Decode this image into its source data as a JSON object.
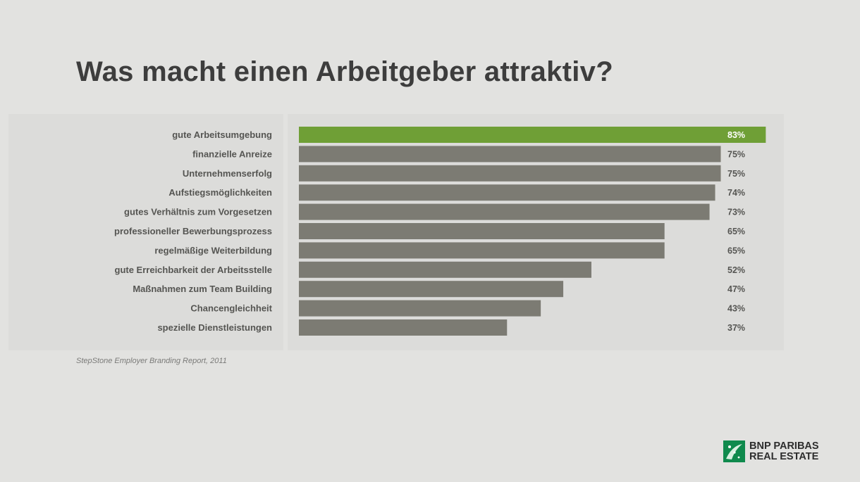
{
  "slide": {
    "title": "Was macht einen Arbeitgeber attraktiv?",
    "source": "StepStone Employer Branding Report, 2011"
  },
  "logo": {
    "line1": "BNP PARIBAS",
    "line2": "REAL ESTATE",
    "mark_color": "#0f8a4d"
  },
  "colors": {
    "highlight_bar": "#6f9f36",
    "bar": "#7c7b73",
    "background": "#e2e2e0"
  },
  "chart_data": {
    "type": "bar",
    "orientation": "horizontal",
    "title": "Was macht einen Arbeitgeber attraktiv?",
    "categories": [
      "gute Arbeitsumgebung",
      "finanzielle Anreize",
      "Unternehmenserfolg",
      "Aufstiegsmöglichkeiten",
      "gutes Verhältnis zum Vorgesetzen",
      "professioneller Bewerbungsprozess",
      "regelmäßige Weiterbildung",
      "gute Erreichbarkeit der Arbeitsstelle",
      "Maßnahmen zum Team Building",
      "Chancengleichheit",
      "spezielle Dienstleistungen"
    ],
    "values": [
      83,
      75,
      75,
      74,
      73,
      65,
      65,
      52,
      47,
      43,
      37
    ],
    "value_labels": [
      "83%",
      "75%",
      "75%",
      "74%",
      "73%",
      "65%",
      "65%",
      "52%",
      "47%",
      "43%",
      "37%"
    ],
    "unit": "%",
    "highlight_index": 0,
    "xlim": [
      0,
      100
    ],
    "grid": false,
    "legend": "none"
  }
}
